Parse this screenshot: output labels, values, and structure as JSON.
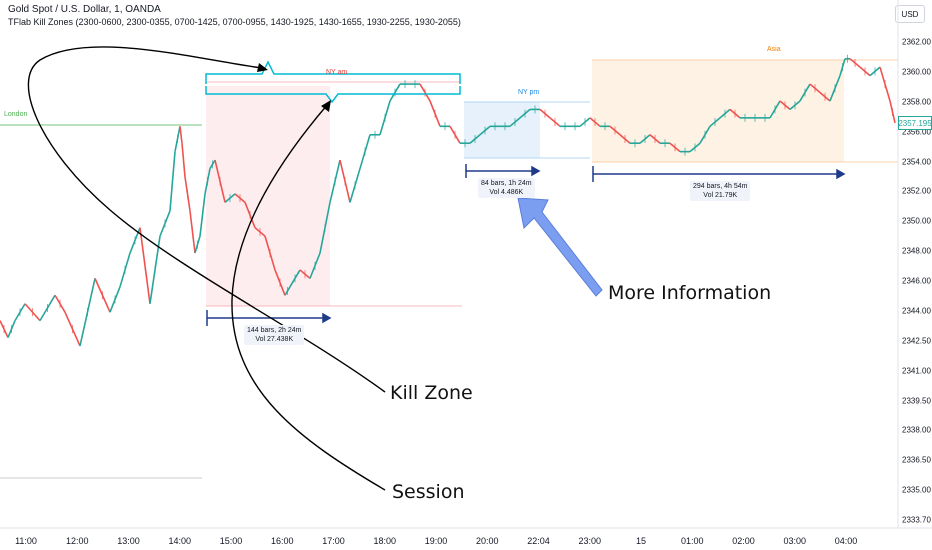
{
  "header": {
    "symbol": "Gold Spot / U.S. Dollar, 1, OANDA",
    "indicator": "TFlab Kill Zones (2300-0600, 2300-0355, 0700-1425, 0700-0955, 1430-1925, 1430-1655, 1930-2255, 1930-2055)",
    "currency": "USD"
  },
  "chart_data": {
    "type": "line",
    "x_ticks": [
      "11:00",
      "12:00",
      "13:00",
      "14:00",
      "15:00",
      "16:00",
      "17:00",
      "18:00",
      "19:00",
      "20:00",
      "22:04",
      "23:00",
      "15",
      "01:00",
      "02:00",
      "03:00",
      "04:00"
    ],
    "y_ticks": [
      "2362.00",
      "2360.00",
      "2358.00",
      "2356.00",
      "2354.00",
      "2352.00",
      "2350.00",
      "2348.00",
      "2346.00",
      "2344.00",
      "2342.50",
      "2341.00",
      "2339.50",
      "2338.00",
      "2336.50",
      "2335.00",
      "2333.70"
    ],
    "ylim": [
      2333.7,
      2362.7
    ],
    "last_price": "2357.195",
    "price": {
      "x": [
        0,
        8,
        15,
        25,
        40,
        55,
        65,
        80,
        95,
        110,
        120,
        130,
        140,
        150,
        160,
        170,
        175,
        180,
        182,
        185,
        190,
        195,
        200,
        205,
        210,
        215,
        225,
        235,
        245,
        255,
        265,
        275,
        285,
        290,
        300,
        310,
        320,
        330,
        340,
        350,
        360,
        370,
        380,
        390,
        400,
        410,
        420,
        430,
        440,
        450,
        460,
        470,
        480,
        490,
        500,
        510,
        520,
        530,
        540,
        550,
        560,
        570,
        580,
        590,
        600,
        610,
        620,
        630,
        640,
        650,
        660,
        670,
        680,
        690,
        700,
        710,
        720,
        730,
        740,
        750,
        760,
        770,
        780,
        790,
        800,
        810,
        820,
        830,
        840,
        845,
        850,
        860,
        870,
        880,
        890,
        895
      ],
      "y": [
        2345.5,
        2344.5,
        2345.5,
        2346.5,
        2345.5,
        2347.0,
        2346.0,
        2344.0,
        2348.0,
        2346.0,
        2347.5,
        2349.5,
        2351.0,
        2346.5,
        2350.5,
        2352.0,
        2355.5,
        2357.0,
        2356.0,
        2354.0,
        2352.0,
        2349.5,
        2350.5,
        2353.0,
        2354.5,
        2355.0,
        2352.5,
        2353.0,
        2352.5,
        2351.0,
        2350.5,
        2348.5,
        2347.0,
        2347.5,
        2348.5,
        2348.0,
        2349.5,
        2352.5,
        2355.0,
        2352.5,
        2354.5,
        2356.5,
        2356.5,
        2358.5,
        2359.5,
        2359.5,
        2359.5,
        2358.5,
        2357.0,
        2357.0,
        2356.0,
        2356.0,
        2356.5,
        2357.0,
        2357.0,
        2357.0,
        2357.5,
        2358.0,
        2358.0,
        2357.5,
        2357.0,
        2357.0,
        2357.0,
        2357.5,
        2357.0,
        2357.0,
        2356.5,
        2356.0,
        2356.0,
        2356.5,
        2356.0,
        2356.0,
        2355.5,
        2355.5,
        2356.0,
        2357.0,
        2357.5,
        2358.0,
        2357.5,
        2357.5,
        2357.5,
        2357.5,
        2358.5,
        2358.0,
        2358.5,
        2359.5,
        2359.0,
        2358.5,
        2360.0,
        2361.0,
        2361.0,
        2360.5,
        2360.0,
        2360.5,
        2358.5,
        2357.2
      ]
    }
  },
  "sessions": {
    "london": {
      "label": "London",
      "high": "2357.60",
      "low": "2337.20"
    },
    "ny_am": {
      "label": "NY am",
      "high": "2359.85",
      "low": "2347.10",
      "bars": "144 bars,  2h 24m",
      "vol": "Vol 27.438K"
    },
    "ny_pm": {
      "label": "NY pm",
      "high": "2358.75",
      "low": "2356.15",
      "bars": "84 bars,  1h 24m",
      "vol": "Vol 4.486K"
    },
    "asia": {
      "label": "Asia",
      "high": "2362.00",
      "low": "2355.70",
      "bars": "294 bars,  4h 54m",
      "vol": "Vol 21.79K"
    }
  },
  "annotations": {
    "more_info": "More Information",
    "kill_zone": "Kill Zone",
    "session": "Session"
  },
  "colors": {
    "up": "#26a69a",
    "down": "#ef5350",
    "range_arrow": "#1e3a8a",
    "bracket": "#00bcd4",
    "pointer": "#7b9ef0"
  }
}
